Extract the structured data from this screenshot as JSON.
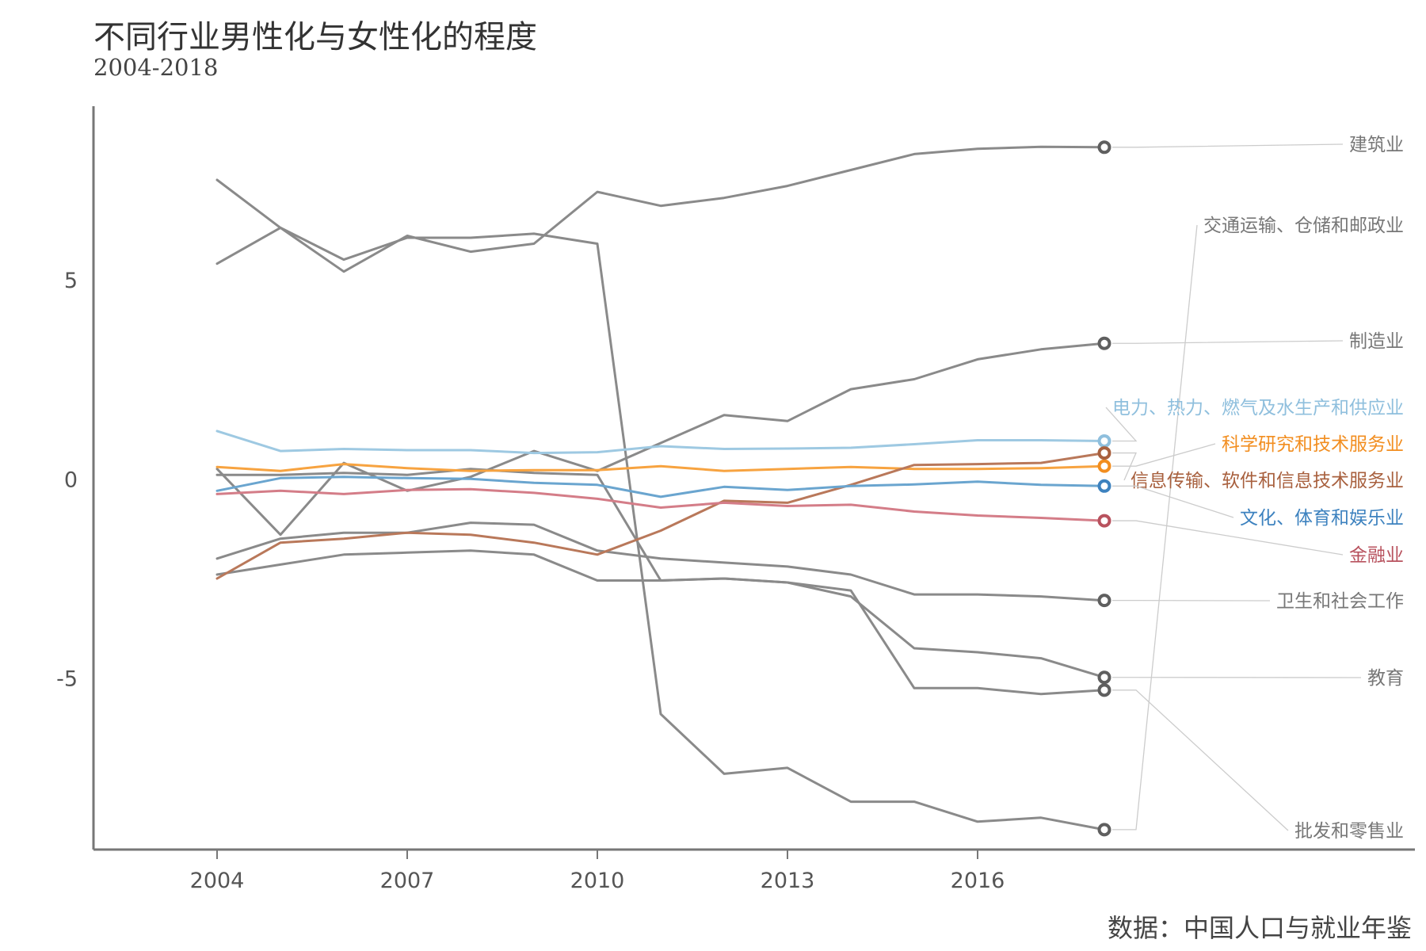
{
  "title": "不同行业男性化与女性化的程度",
  "subtitle": "2004-2018",
  "source": "数据：中国人口与就业年鉴",
  "chart_data": {
    "type": "line",
    "x": [
      2004,
      2005,
      2006,
      2007,
      2008,
      2009,
      2010,
      2011,
      2012,
      2013,
      2014,
      2015,
      2016,
      2017,
      2018
    ],
    "xticks": [
      2004,
      2007,
      2010,
      2013,
      2016
    ],
    "yticks": [
      -5,
      0,
      5
    ],
    "xlim": [
      2002.05,
      2022.9
    ],
    "ylim": [
      -9.3,
      9.35
    ],
    "grid": false,
    "legend": "direct-labels-right",
    "series": [
      {
        "name": "建筑业",
        "color": "#8a8a8a",
        "label_color": "#777777",
        "values": [
          5.4,
          6.3,
          5.2,
          6.1,
          5.7,
          5.9,
          7.2,
          6.85,
          7.05,
          7.35,
          7.75,
          8.15,
          8.28,
          8.33,
          8.32
        ]
      },
      {
        "name": "交通运输、仓储和邮政业",
        "color": "#8a8a8a",
        "label_color": "#777777",
        "values": [
          7.5,
          6.3,
          5.5,
          6.05,
          6.05,
          6.15,
          5.9,
          -5.9,
          -7.4,
          -7.25,
          -8.1,
          -8.1,
          -8.6,
          -8.5,
          -8.8
        ]
      },
      {
        "name": "制造业",
        "color": "#8a8a8a",
        "label_color": "#777777",
        "values": [
          0.25,
          -1.4,
          0.4,
          -0.3,
          0.05,
          0.7,
          0.2,
          0.9,
          1.6,
          1.45,
          2.25,
          2.5,
          3.0,
          3.25,
          3.4
        ]
      },
      {
        "name": "电力、热力、燃气及水生产和供应业",
        "color": "#9ec9e2",
        "label_color": "#8fbfdd",
        "values": [
          1.2,
          0.7,
          0.75,
          0.72,
          0.72,
          0.65,
          0.67,
          0.82,
          0.75,
          0.76,
          0.78,
          0.87,
          0.97,
          0.97,
          0.95
        ]
      },
      {
        "name": "科学研究和技术服务业",
        "color": "#f7a340",
        "label_color": "#f28e20",
        "values": [
          0.3,
          0.2,
          0.37,
          0.27,
          0.2,
          0.22,
          0.22,
          0.32,
          0.2,
          0.25,
          0.3,
          0.25,
          0.25,
          0.27,
          0.32
        ]
      },
      {
        "name": "信息传输、软件和信息技术服务业",
        "color": "#b9785a",
        "label_color": "#a8603e",
        "values": [
          -2.5,
          -1.6,
          -1.5,
          -1.35,
          -1.4,
          -1.6,
          -1.9,
          -1.3,
          -0.55,
          -0.6,
          -0.15,
          0.35,
          0.37,
          0.4,
          0.65
        ]
      },
      {
        "name": "文化、体育和娱乐业",
        "color": "#6aa5cf",
        "label_color": "#3d82bf",
        "values": [
          -0.3,
          0.02,
          0.05,
          0.02,
          0.0,
          -0.1,
          -0.15,
          -0.45,
          -0.2,
          -0.28,
          -0.18,
          -0.14,
          -0.07,
          -0.15,
          -0.18
        ]
      },
      {
        "name": "金融业",
        "color": "#d47d88",
        "label_color": "#b8525e",
        "values": [
          -0.38,
          -0.3,
          -0.38,
          -0.28,
          -0.26,
          -0.35,
          -0.5,
          -0.72,
          -0.6,
          -0.68,
          -0.65,
          -0.82,
          -0.92,
          -0.98,
          -1.05
        ]
      },
      {
        "name": "卫生和社会工作",
        "color": "#8a8a8a",
        "label_color": "#777777",
        "values": [
          -2.0,
          -1.5,
          -1.35,
          -1.35,
          -1.1,
          -1.15,
          -1.8,
          -2.0,
          -2.1,
          -2.2,
          -2.4,
          -2.9,
          -2.9,
          -2.95,
          -3.05
        ]
      },
      {
        "name": "教育",
        "color": "#8a8a8a",
        "label_color": "#777777",
        "values": [
          0.1,
          0.1,
          0.15,
          0.1,
          0.25,
          0.15,
          0.1,
          -2.55,
          -2.5,
          -2.6,
          -2.95,
          -4.25,
          -4.35,
          -4.5,
          -4.98
        ]
      },
      {
        "name": "批发和零售业",
        "color": "#8a8a8a",
        "label_color": "#777777",
        "values": [
          -2.4,
          -2.15,
          -1.9,
          -1.85,
          -1.8,
          -1.9,
          -2.55,
          -2.55,
          -2.5,
          -2.6,
          -2.8,
          -5.25,
          -5.25,
          -5.4,
          -5.3
        ]
      }
    ]
  }
}
